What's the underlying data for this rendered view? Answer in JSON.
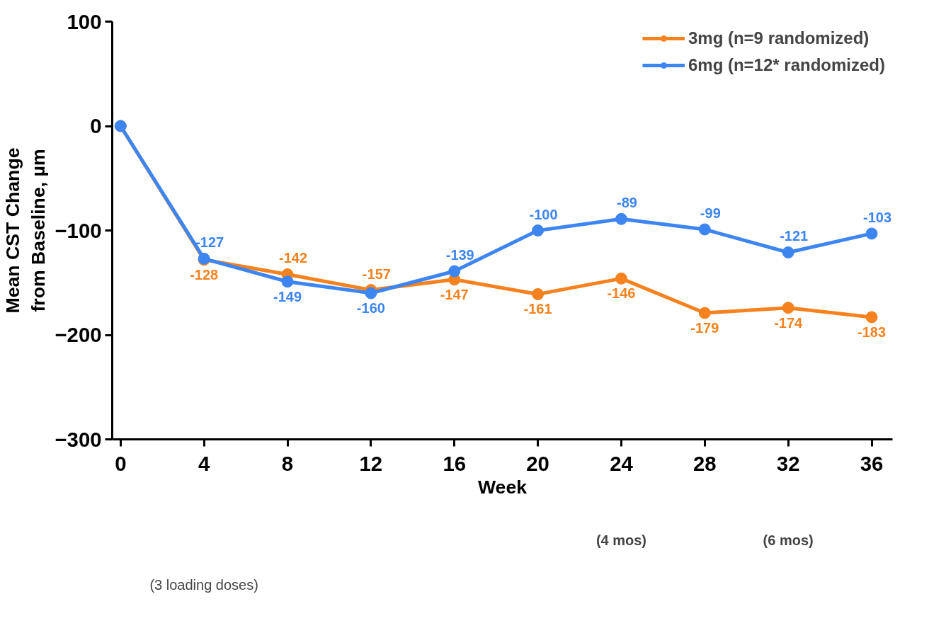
{
  "chart_data": {
    "type": "line",
    "xlabel": "Week",
    "ylabel": "Mean CST Change\nfrom Baseline, µm",
    "x": [
      0,
      4,
      8,
      12,
      16,
      20,
      24,
      28,
      32,
      36
    ],
    "xlim": [
      -0.4,
      37
    ],
    "xticks": [
      0,
      4,
      8,
      12,
      16,
      20,
      24,
      28,
      32,
      36
    ],
    "ylim": [
      -300,
      100
    ],
    "yticks": [
      -300,
      -200,
      -100,
      0,
      100
    ],
    "series": [
      {
        "name": "3mg (n=9 randomized)",
        "color": "#f5821f",
        "values": [
          0,
          -128,
          -142,
          -157,
          -147,
          -161,
          -146,
          -179,
          -174,
          -183
        ],
        "value_labels": [
          null,
          "-128",
          "-142",
          "-157",
          "-147",
          "-161",
          "-146",
          "-179",
          "-174",
          "-183"
        ]
      },
      {
        "name": "6mg (n=12* randomized)",
        "color": "#3d85f0",
        "values": [
          0,
          -127,
          -149,
          -160,
          -139,
          -100,
          -89,
          -99,
          -121,
          -103
        ],
        "value_labels": [
          null,
          "-127",
          "-149",
          "-160",
          "-139",
          "-100",
          "-89",
          "-99",
          "-121",
          "-103"
        ]
      }
    ],
    "annotations": [
      "(4 mos)",
      "(6 mos)",
      "(3 loading doses)"
    ],
    "marker": "circle",
    "line_style": "solid",
    "grid": false,
    "legend": "top right"
  }
}
